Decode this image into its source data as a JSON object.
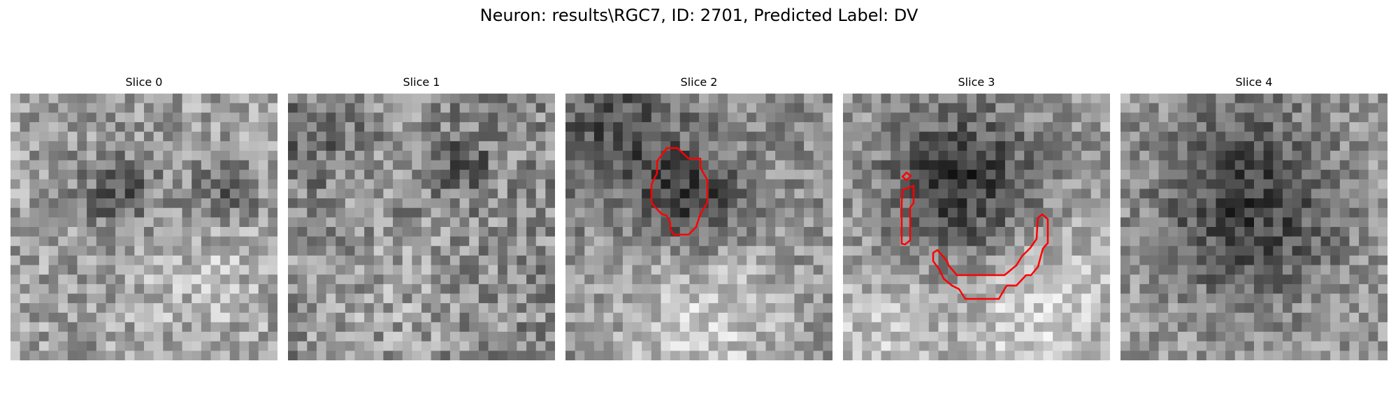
{
  "figure": {
    "title": "Neuron: results\\RGC7, ID: 2701, Predicted Label: DV"
  },
  "slices": [
    {
      "title": "Slice 0",
      "has_contour": false
    },
    {
      "title": "Slice 1",
      "has_contour": false
    },
    {
      "title": "Slice 2",
      "has_contour": true
    },
    {
      "title": "Slice 3",
      "has_contour": true
    },
    {
      "title": "Slice 4",
      "has_contour": false
    }
  ],
  "colors": {
    "contour": "#ff0000",
    "colormap": "grayscale"
  }
}
